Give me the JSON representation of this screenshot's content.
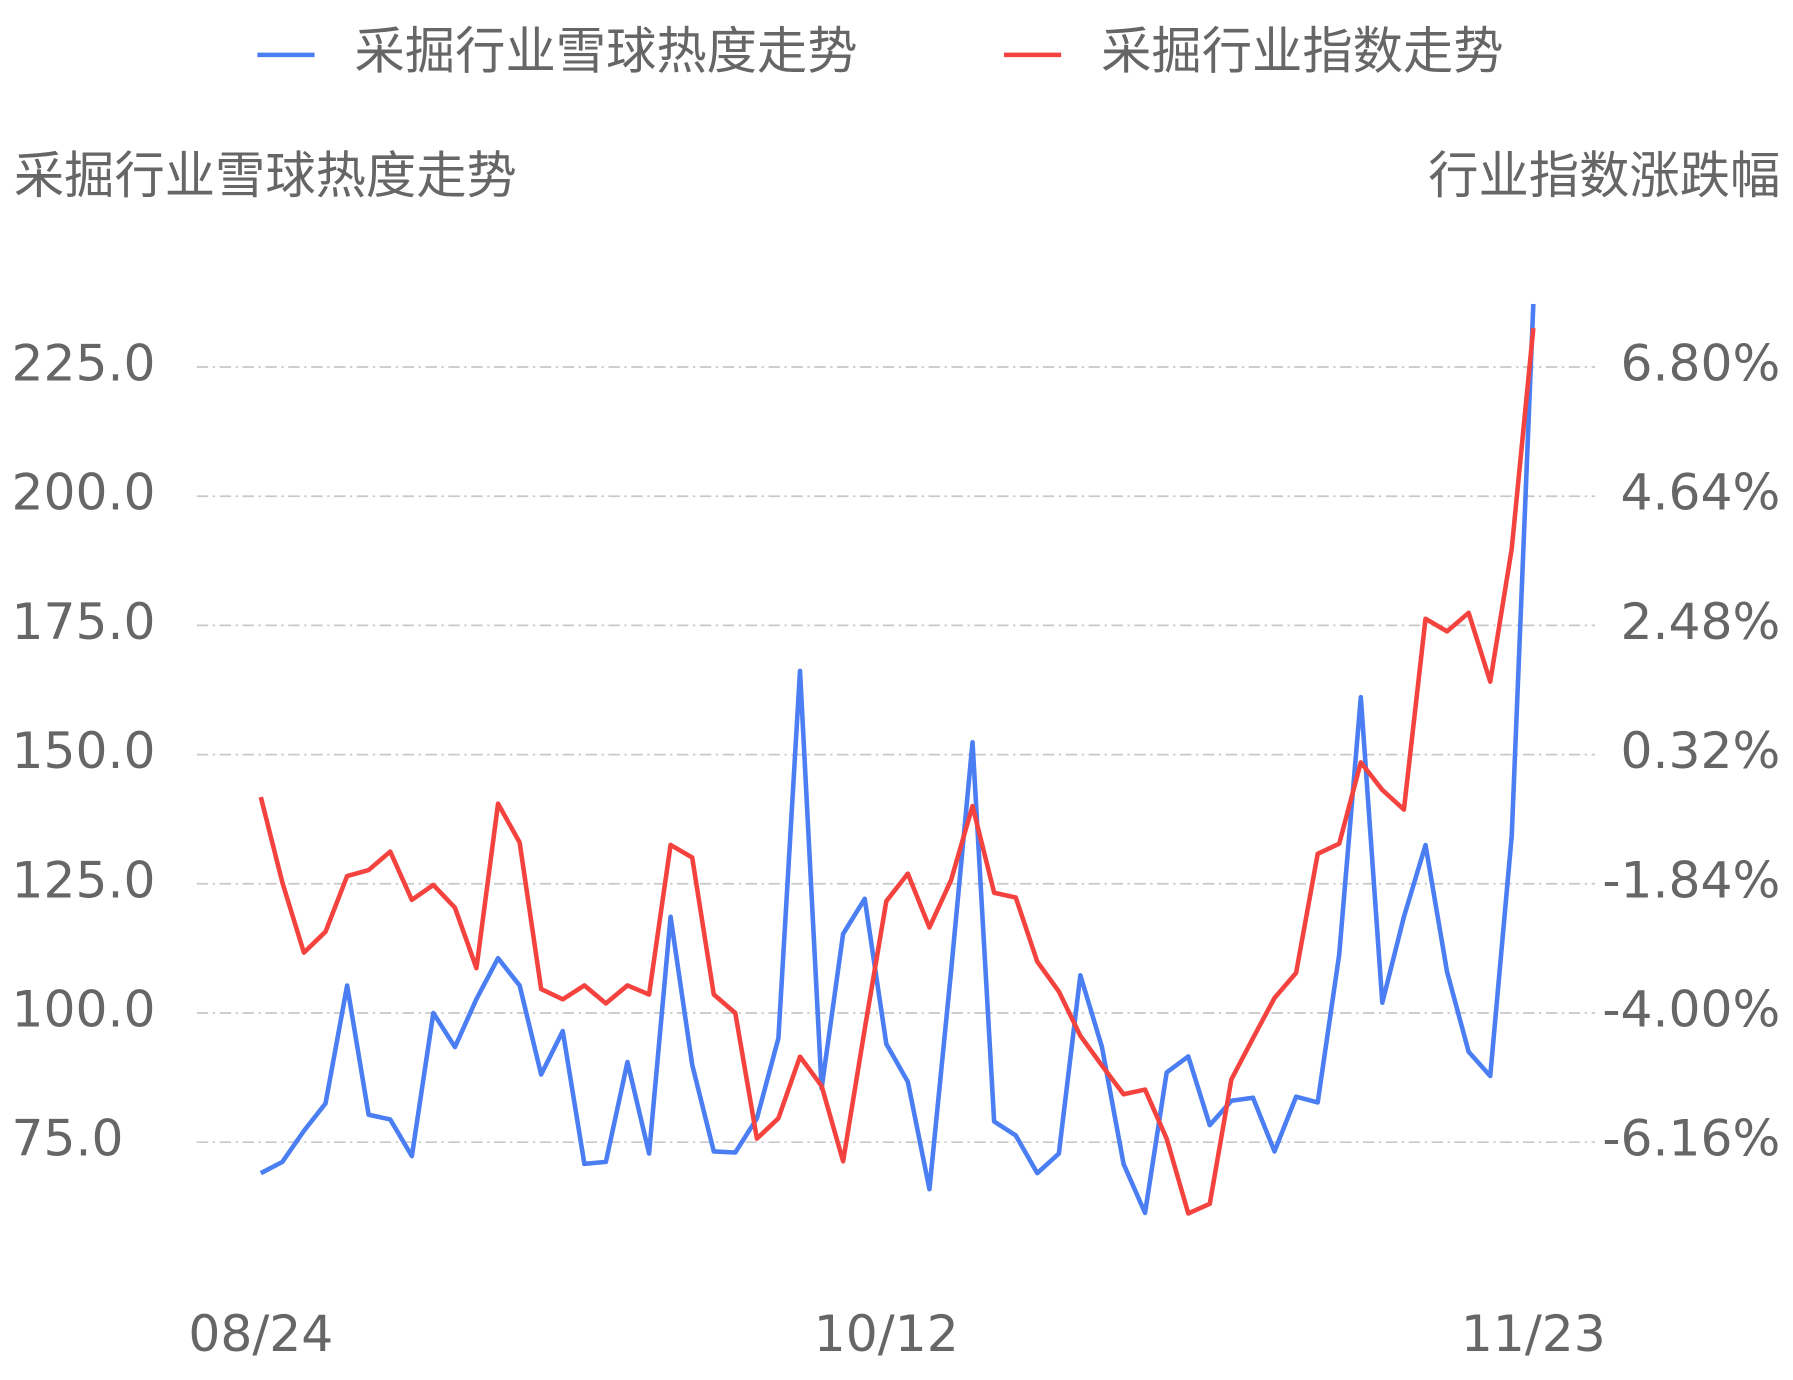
{
  "chart_data": {
    "type": "line",
    "legend": "top",
    "grid": true,
    "y_label": "采掘行业雪球热度走势",
    "y2_label": "行业指数涨跌幅",
    "categories": [
      "08/24",
      null,
      null,
      null,
      null,
      null,
      null,
      null,
      null,
      null,
      null,
      null,
      null,
      null,
      null,
      null,
      null,
      null,
      null,
      null,
      null,
      null,
      null,
      null,
      null,
      null,
      null,
      null,
      null,
      "10/12",
      null,
      null,
      null,
      null,
      null,
      null,
      null,
      null,
      null,
      null,
      null,
      null,
      null,
      null,
      null,
      null,
      null,
      null,
      null,
      null,
      null,
      null,
      null,
      null,
      null,
      null,
      null,
      null,
      null,
      "11/23"
    ],
    "series": [
      {
        "name": "采掘行业雪球热度走势",
        "color": "#4a7ef2",
        "axis": "y",
        "values": [
          69.0,
          71.2,
          77.2,
          82.5,
          105.3,
          80.3,
          79.4,
          72.3,
          100.0,
          93.4,
          102.7,
          110.6,
          105.3,
          88.1,
          96.5,
          70.8,
          71.2,
          90.5,
          72.8,
          118.6,
          90.0,
          73.2,
          73.0,
          79.6,
          95.1,
          166.2,
          85.4,
          115.3,
          122.1,
          94.0,
          86.7,
          65.9,
          108.0,
          152.4,
          79.0,
          76.3,
          69.0,
          72.8,
          107.3,
          93.4,
          70.8,
          61.3,
          88.5,
          91.6,
          78.3,
          83.0,
          83.6,
          73.2,
          83.8,
          82.7,
          111.3,
          161.1,
          102.0,
          118.6,
          132.5,
          108.0,
          92.5,
          87.8,
          134.3,
          237.2
        ]
      },
      {
        "name": "采掘行业指数走势",
        "color": "#f4433f",
        "axis": "y2",
        "values": [
          -0.39,
          -1.82,
          -2.99,
          -2.64,
          -1.71,
          -1.61,
          -1.3,
          -2.11,
          -1.86,
          -2.24,
          -3.25,
          -0.5,
          -1.15,
          -3.6,
          -3.77,
          -3.54,
          -3.84,
          -3.54,
          -3.69,
          -1.19,
          -1.4,
          -3.69,
          -4.0,
          -6.1,
          -5.76,
          -4.73,
          -5.22,
          -6.48,
          -4.27,
          -2.13,
          -1.67,
          -2.57,
          -1.78,
          -0.54,
          -1.99,
          -2.07,
          -3.14,
          -3.64,
          -4.38,
          -4.88,
          -5.36,
          -5.28,
          -6.1,
          -7.35,
          -7.19,
          -5.11,
          -4.42,
          -3.75,
          -3.33,
          -1.34,
          -1.17,
          0.19,
          -0.27,
          -0.6,
          2.59,
          2.38,
          2.69,
          1.54,
          3.76,
          7.45
        ]
      }
    ],
    "ylim": [
      50,
      250
    ],
    "yticks": [
      {
        "value": 75,
        "label": "75.0"
      },
      {
        "value": 100,
        "label": "100.0"
      },
      {
        "value": 125,
        "label": "125.0"
      },
      {
        "value": 150,
        "label": "150.0"
      },
      {
        "value": 175,
        "label": "175.0"
      },
      {
        "value": 200,
        "label": "200.0"
      },
      {
        "value": 225,
        "label": "225.0"
      }
    ],
    "y2lim": [
      -8.32,
      8.96
    ],
    "y2ticks": [
      {
        "value": -6.16,
        "label": "-6.16%"
      },
      {
        "value": -4.0,
        "label": "-4.00%"
      },
      {
        "value": -1.84,
        "label": "-1.84%"
      },
      {
        "value": 0.32,
        "label": "0.32%"
      },
      {
        "value": 2.48,
        "label": "2.48%"
      },
      {
        "value": 4.64,
        "label": "4.64%"
      },
      {
        "value": 6.8,
        "label": "6.80%"
      }
    ]
  }
}
